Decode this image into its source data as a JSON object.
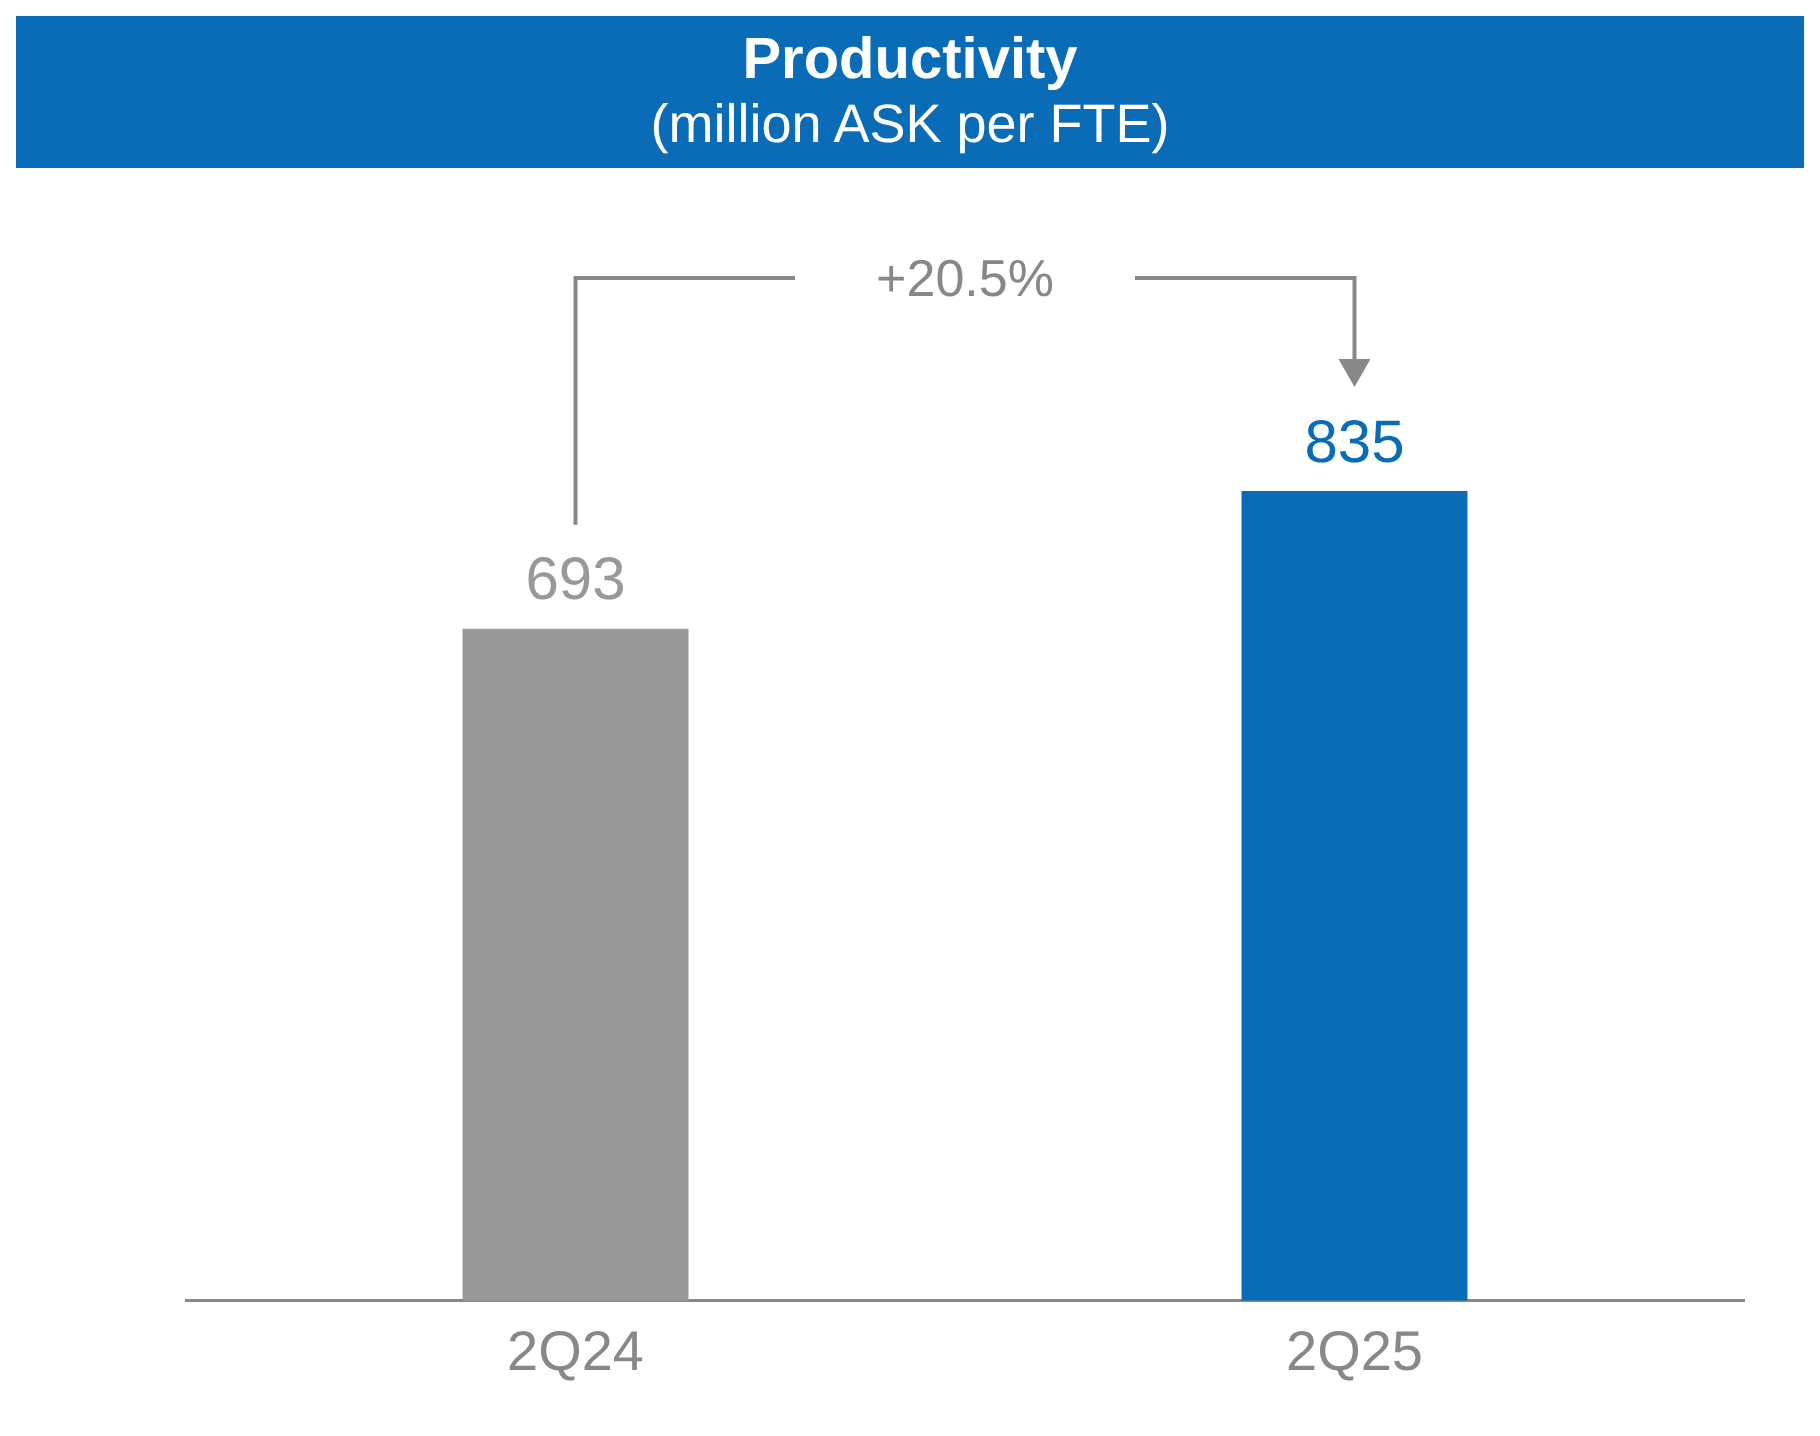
{
  "chart_data": {
    "type": "bar",
    "title": "Productivity",
    "subtitle": "(million ASK per FTE)",
    "categories": [
      "2Q24",
      "2Q25"
    ],
    "values": [
      693,
      835
    ],
    "colors": [
      "#999999",
      "#0a6cb6"
    ],
    "data_labels": true,
    "annotations": [
      "+20.5%"
    ],
    "grid": false,
    "legend": false
  }
}
